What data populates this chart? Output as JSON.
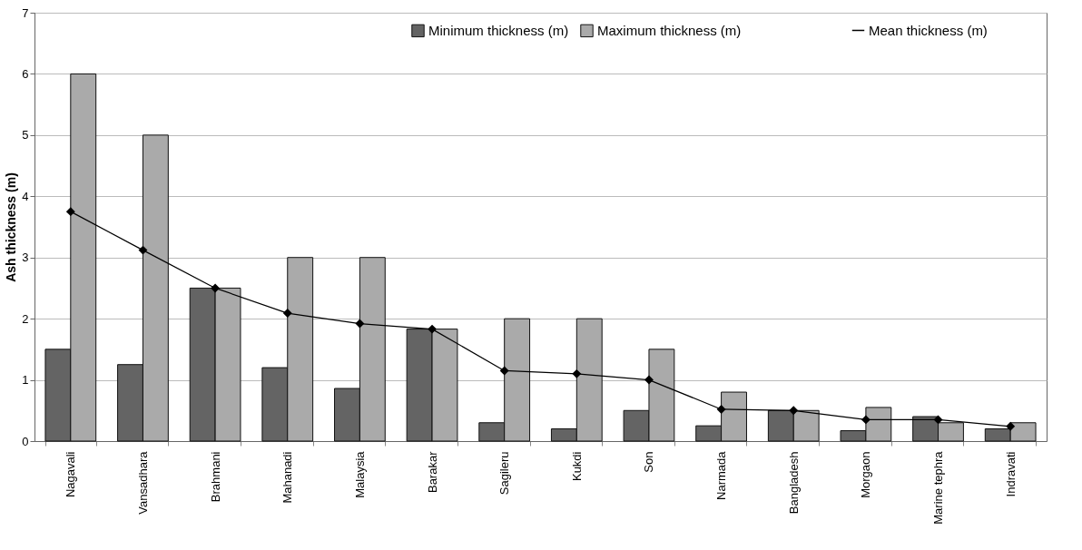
{
  "chart_data": {
    "type": "bar",
    "ylabel": "Ash thickness (m)",
    "categories": [
      "Nagavali",
      "Vansadhara",
      "Brahmani",
      "Mahanadi",
      "Malaysia",
      "Barakar",
      "Sagileru",
      "Kukdi",
      "Son",
      "Narmada",
      "Bangladesh",
      "Morgaon",
      "Marine tephra",
      "Indravati"
    ],
    "series": [
      {
        "name": "Minimum thickness (m)",
        "color": "#646464",
        "values": [
          1.5,
          1.25,
          2.5,
          1.2,
          0.86,
          1.83,
          0.3,
          0.2,
          0.5,
          0.25,
          0.5,
          0.17,
          0.4,
          0.2
        ]
      },
      {
        "name": "Maximum thickness (m)",
        "color": "#aaaaaa",
        "values": [
          6,
          5,
          2.5,
          3,
          3,
          1.83,
          2,
          2,
          1.5,
          0.8,
          0.5,
          0.55,
          0.3,
          0.3
        ]
      },
      {
        "name": "Mean thickness (m)",
        "type": "line",
        "color": "#000000",
        "marker": "diamond",
        "values": [
          3.75,
          3.12,
          2.5,
          2.09,
          1.92,
          1.83,
          1.15,
          1.1,
          1.0,
          0.52,
          0.5,
          0.35,
          0.35,
          0.24
        ]
      }
    ],
    "ylim": [
      0,
      7
    ],
    "yticks": [
      0,
      1,
      2,
      3,
      4,
      5,
      6,
      7
    ],
    "grid": "y",
    "legend": "top right"
  }
}
